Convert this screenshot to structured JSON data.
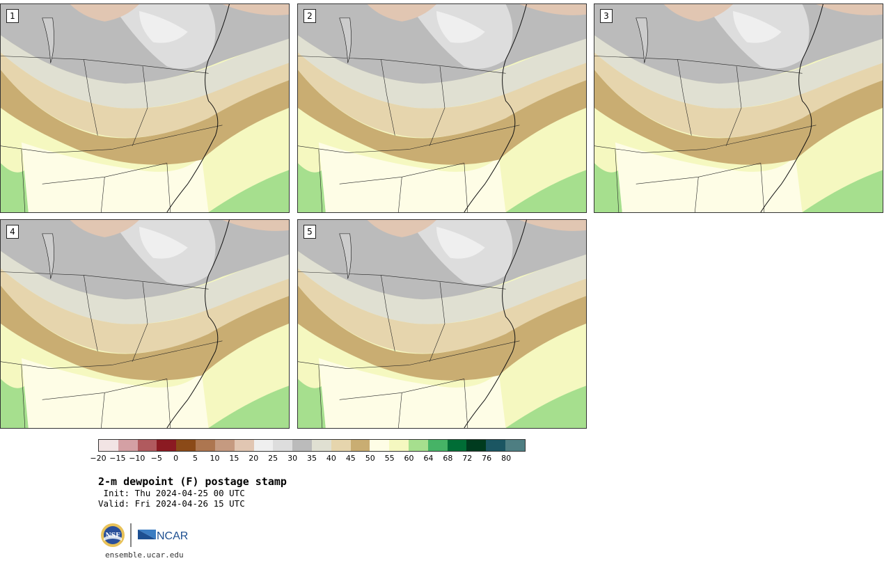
{
  "panels": [
    {
      "label": "1"
    },
    {
      "label": "2"
    },
    {
      "label": "3"
    },
    {
      "label": "4"
    },
    {
      "label": "5"
    }
  ],
  "colorbar": {
    "colors": [
      "#f2e4e4",
      "#d4a0a4",
      "#b05a5e",
      "#8b1a22",
      "#8b4a18",
      "#ad7650",
      "#c59a80",
      "#e1c6b2",
      "#efefef",
      "#dddddd",
      "#bbbbbb",
      "#e0e0d2",
      "#e6d5ad",
      "#c9ad72",
      "#fefde6",
      "#f5f8c0",
      "#a6df8e",
      "#46b366",
      "#006d36",
      "#003b1f",
      "#1b5662",
      "#4e7e82"
    ],
    "tick_labels": [
      "−20",
      "−15",
      "−10",
      "−5",
      "0",
      "5",
      "10",
      "15",
      "20",
      "25",
      "30",
      "35",
      "40",
      "45",
      "50",
      "55",
      "60",
      "64",
      "68",
      "72",
      "76",
      "80"
    ]
  },
  "title": "2-m dewpoint (F) postage stamp",
  "init": " Init: Thu 2024-04-25 00 UTC",
  "valid": "Valid: Fri 2024-04-26 15 UTC",
  "logo": {
    "nsf_text": "NSF",
    "ncar_text": "NCAR"
  },
  "website": "ensemble.ucar.edu"
}
